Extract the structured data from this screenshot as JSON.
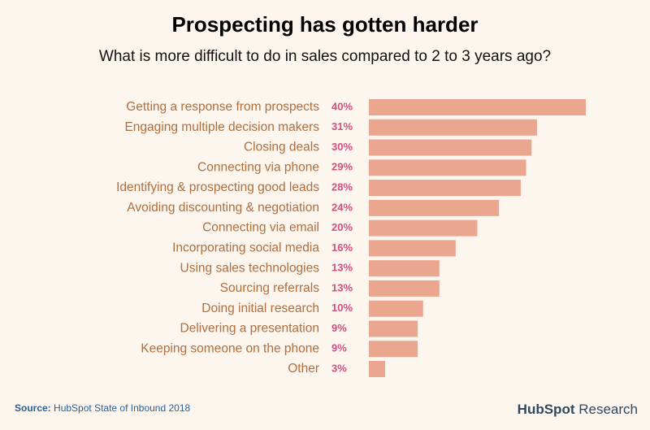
{
  "chart_data": {
    "type": "hbar",
    "title": "Prospecting has gotten harder",
    "subtitle": "What is more difficult to do in sales compared to 2 to 3 years ago?",
    "categories": [
      "Getting a response from prospects",
      "Engaging multiple decision makers",
      "Closing deals",
      "Connecting via phone",
      "Identifying & prospecting good leads",
      "Avoiding discounting & negotiation",
      "Connecting via email",
      "Incorporating social media",
      "Using sales technologies",
      "Sourcing referrals",
      "Doing initial research",
      "Delivering a presentation",
      "Keeping someone on the phone",
      "Other"
    ],
    "values": [
      40,
      31,
      30,
      29,
      28,
      24,
      20,
      16,
      13,
      13,
      10,
      9,
      9,
      3
    ],
    "value_labels": [
      "40%",
      "31%",
      "30%",
      "29%",
      "28%",
      "24%",
      "20%",
      "16%",
      "13%",
      "13%",
      "10%",
      "9%",
      "9%",
      "3%"
    ],
    "color": "#eba690",
    "source_label": "Source:",
    "source": "HubSpot State of Inbound 2018",
    "logo": "HubSpot",
    "logo_suffix": "Research"
  }
}
